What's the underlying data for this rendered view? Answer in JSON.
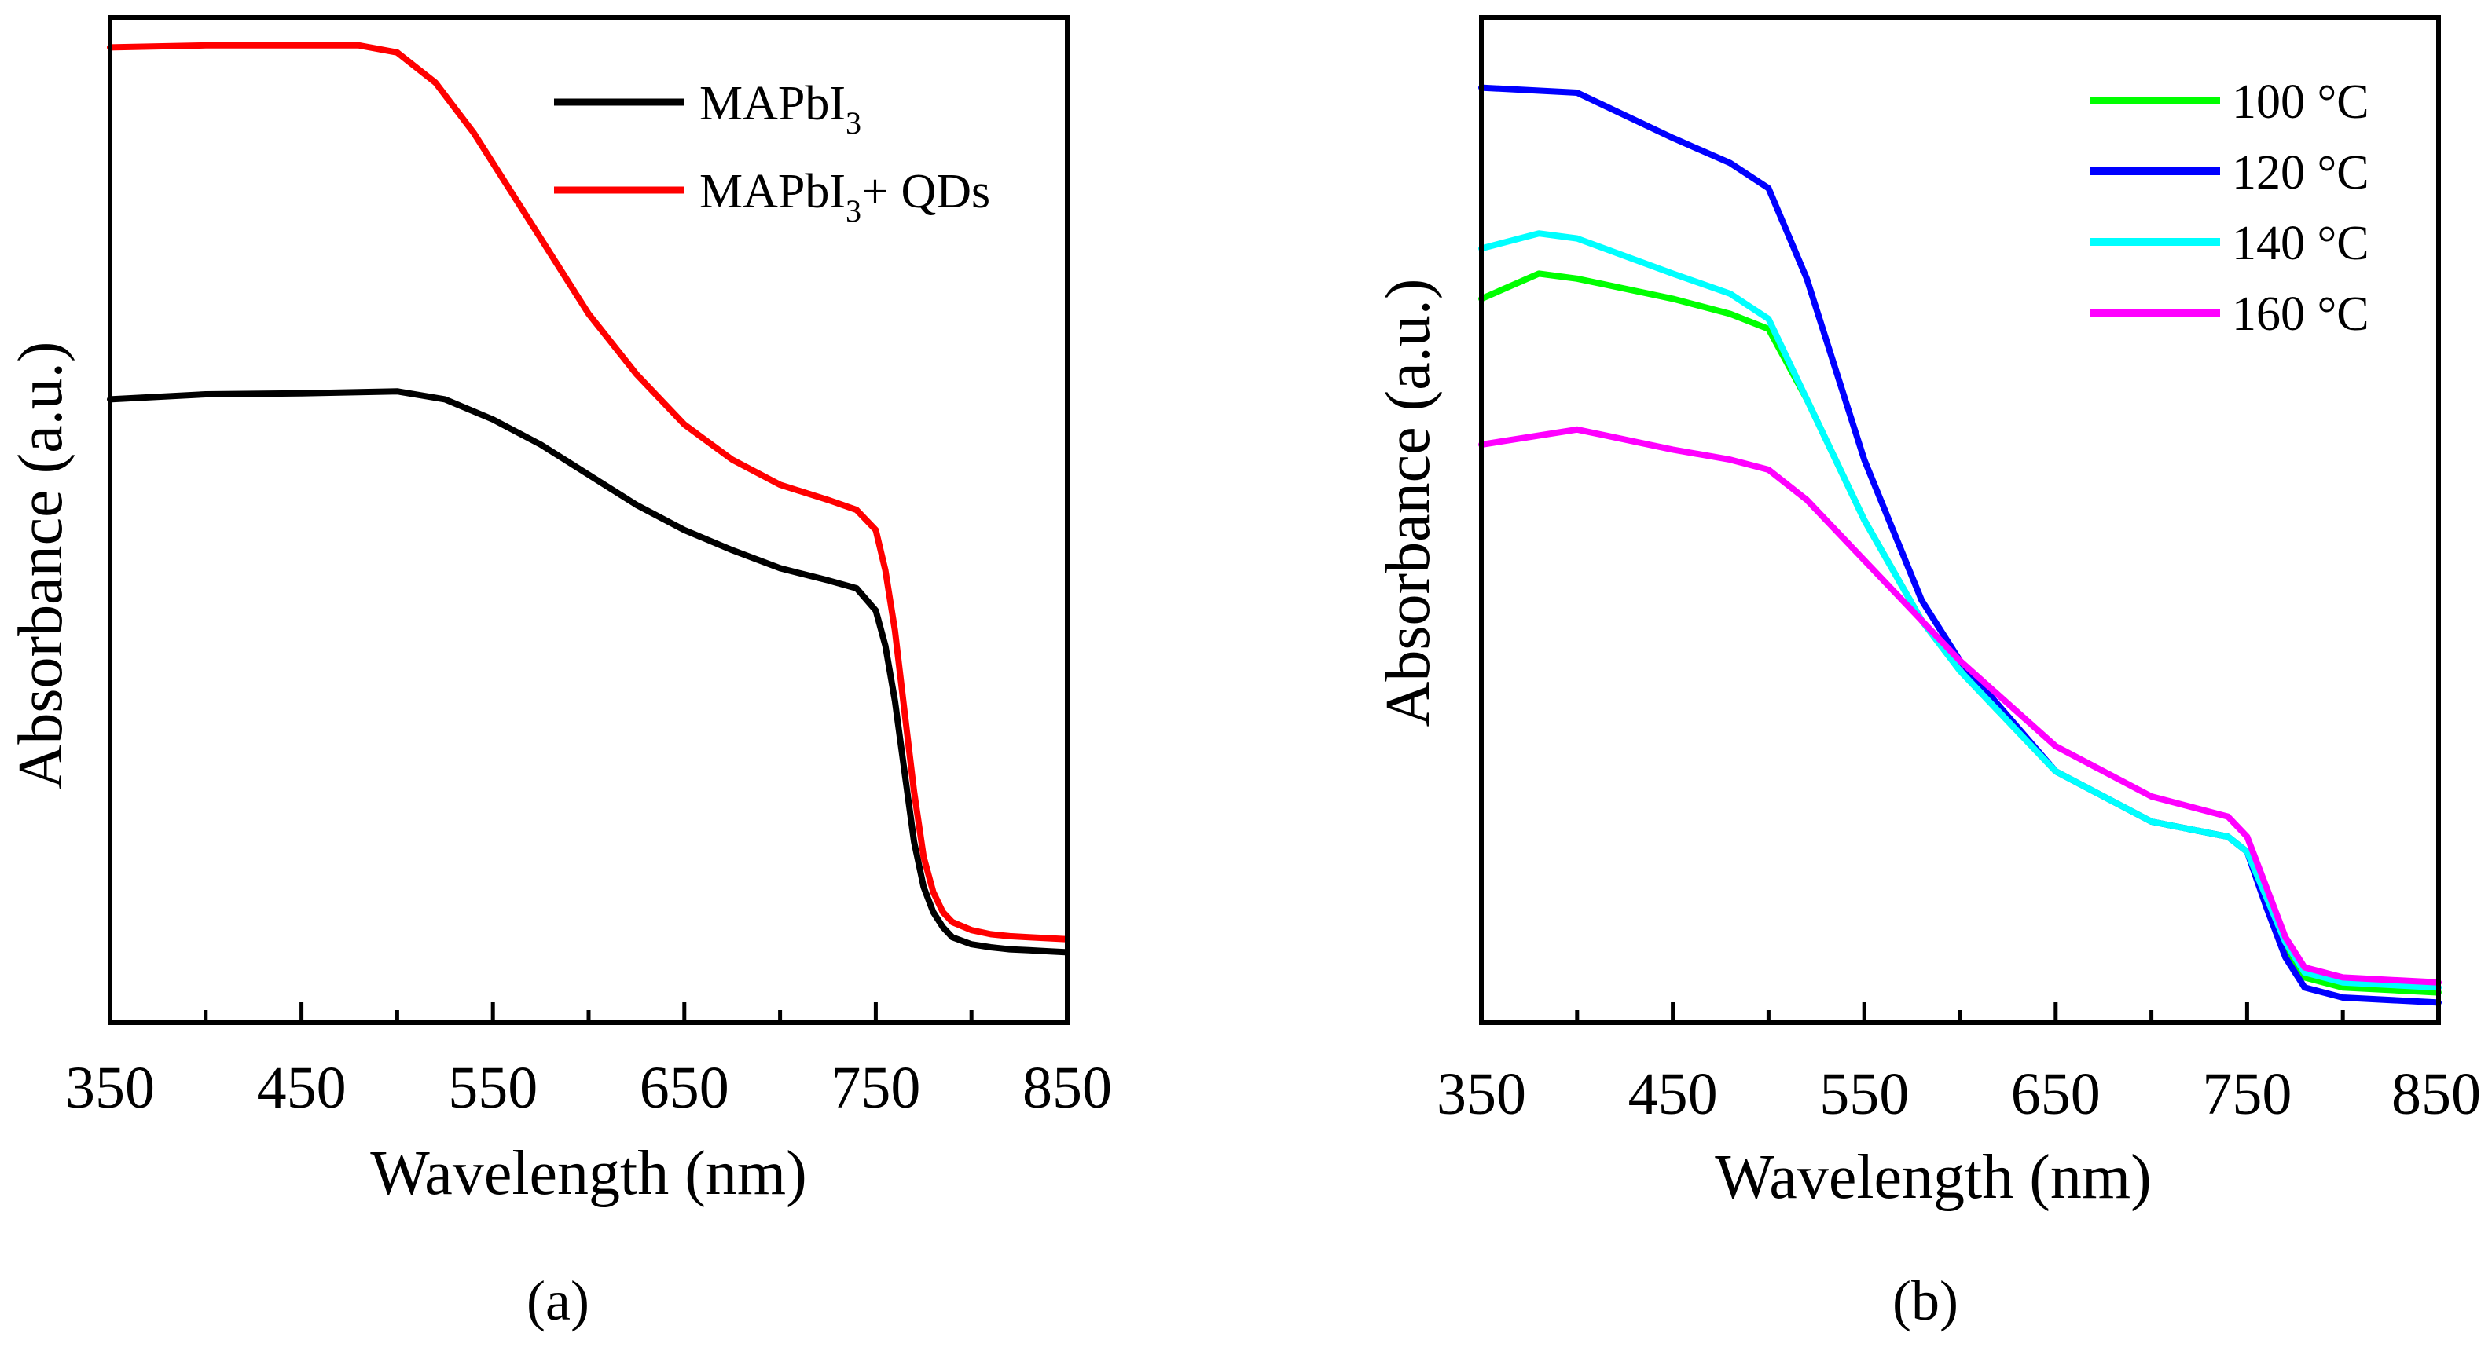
{
  "chart_data": [
    {
      "panel_label": "(a)",
      "type": "line",
      "title": "",
      "xlabel": "Wavelength (nm)",
      "ylabel": "Absorbance (a.u.)",
      "xlim": [
        350,
        850
      ],
      "ylim": [
        0,
        1
      ],
      "xticks": [
        "350",
        "450",
        "550",
        "650",
        "750",
        "850"
      ],
      "legend_position": "top-right",
      "series": [
        {
          "name": "MAPbI3",
          "legend_main": "MAPbI",
          "legend_sub": "3",
          "legend_tail": "",
          "color": "#000000",
          "x": [
            350,
            400,
            450,
            500,
            525,
            550,
            575,
            600,
            625,
            650,
            675,
            700,
            725,
            740,
            750,
            755,
            760,
            765,
            770,
            775,
            780,
            785,
            790,
            800,
            810,
            820,
            830,
            840,
            850
          ],
          "y": [
            0.62,
            0.625,
            0.626,
            0.628,
            0.62,
            0.6,
            0.575,
            0.545,
            0.515,
            0.49,
            0.47,
            0.452,
            0.44,
            0.432,
            0.41,
            0.375,
            0.32,
            0.25,
            0.18,
            0.135,
            0.11,
            0.095,
            0.085,
            0.078,
            0.075,
            0.073,
            0.072,
            0.071,
            0.07
          ]
        },
        {
          "name": "MAPbI3+ QDs",
          "legend_main": "MAPbI",
          "legend_sub": "3",
          "legend_tail": "+ QDs",
          "color": "#ff0000",
          "x": [
            350,
            400,
            450,
            480,
            500,
            520,
            540,
            560,
            580,
            600,
            625,
            650,
            675,
            700,
            725,
            740,
            750,
            755,
            760,
            765,
            770,
            775,
            780,
            785,
            790,
            800,
            810,
            820,
            830,
            840,
            850
          ],
          "y": [
            0.97,
            0.972,
            0.972,
            0.972,
            0.965,
            0.935,
            0.885,
            0.825,
            0.765,
            0.705,
            0.645,
            0.595,
            0.56,
            0.535,
            0.52,
            0.51,
            0.49,
            0.45,
            0.39,
            0.31,
            0.23,
            0.165,
            0.13,
            0.11,
            0.1,
            0.092,
            0.088,
            0.086,
            0.085,
            0.084,
            0.083
          ]
        }
      ]
    },
    {
      "panel_label": "(b)",
      "type": "line",
      "title": "",
      "xlabel": "Wavelength (nm)",
      "ylabel": "Absorbance (a.u.)",
      "xlim": [
        350,
        850
      ],
      "ylim": [
        0,
        1
      ],
      "xticks": [
        "350",
        "450",
        "550",
        "650",
        "750",
        "850"
      ],
      "legend_position": "top-right",
      "series": [
        {
          "name": "100 °C",
          "color": "#00ff00",
          "x": [
            350,
            380,
            400,
            450,
            480,
            500,
            520,
            550,
            580,
            600,
            650,
            700,
            740,
            750,
            760,
            770,
            780,
            800,
            850
          ],
          "y": [
            0.72,
            0.745,
            0.74,
            0.72,
            0.705,
            0.69,
            0.62,
            0.5,
            0.4,
            0.35,
            0.25,
            0.2,
            0.185,
            0.17,
            0.12,
            0.075,
            0.045,
            0.035,
            0.03
          ]
        },
        {
          "name": "120 °C",
          "color": "#0000ff",
          "x": [
            350,
            400,
            450,
            480,
            500,
            520,
            550,
            580,
            600,
            650,
            700,
            740,
            750,
            760,
            770,
            780,
            800,
            850
          ],
          "y": [
            0.93,
            0.925,
            0.88,
            0.855,
            0.83,
            0.74,
            0.56,
            0.42,
            0.36,
            0.25,
            0.2,
            0.185,
            0.17,
            0.115,
            0.065,
            0.035,
            0.025,
            0.02
          ]
        },
        {
          "name": "140 °C",
          "color": "#00ffff",
          "x": [
            350,
            380,
            400,
            450,
            480,
            500,
            520,
            550,
            580,
            600,
            650,
            700,
            740,
            750,
            760,
            770,
            780,
            800,
            850
          ],
          "y": [
            0.77,
            0.785,
            0.78,
            0.745,
            0.725,
            0.7,
            0.62,
            0.5,
            0.4,
            0.35,
            0.25,
            0.2,
            0.185,
            0.17,
            0.125,
            0.08,
            0.05,
            0.04,
            0.035
          ]
        },
        {
          "name": "160 °C",
          "color": "#ff00ff",
          "x": [
            350,
            400,
            450,
            480,
            500,
            520,
            550,
            580,
            600,
            650,
            700,
            740,
            750,
            760,
            770,
            780,
            800,
            850
          ],
          "y": [
            0.575,
            0.59,
            0.57,
            0.56,
            0.55,
            0.52,
            0.46,
            0.4,
            0.36,
            0.275,
            0.225,
            0.205,
            0.185,
            0.135,
            0.085,
            0.055,
            0.045,
            0.04
          ]
        }
      ]
    }
  ]
}
